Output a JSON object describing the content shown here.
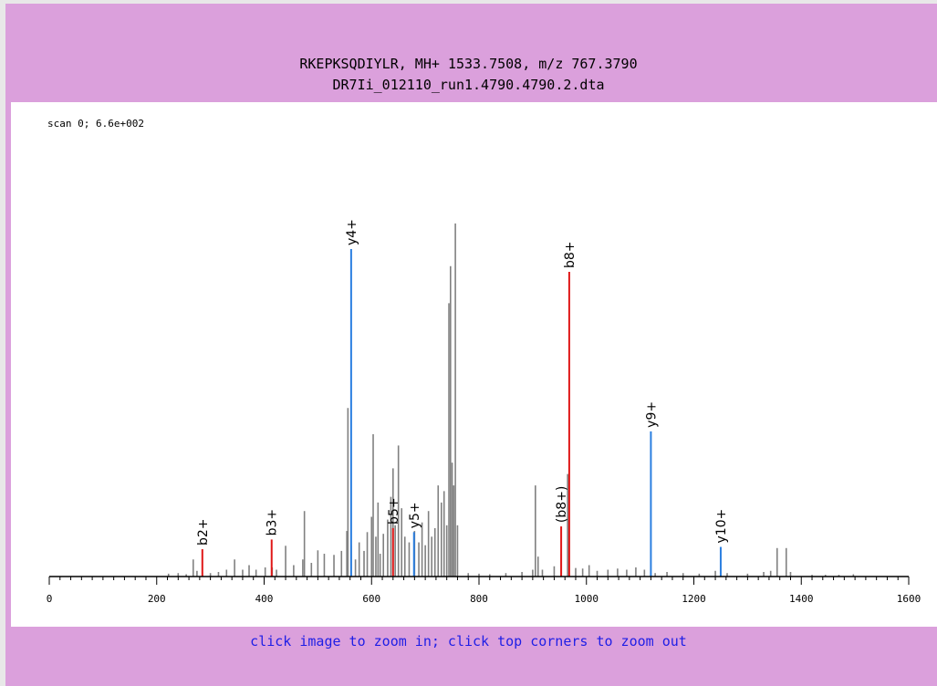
{
  "header": {
    "title_line1": "RKEPKSQDIYLR, MH+ 1533.7508, m/z 767.3790",
    "title_line2": "DR7Ii_012110_run1.4790.4790.2.dta"
  },
  "footer": {
    "hint": "click image to zoom in; click top corners to zoom out"
  },
  "colors": {
    "background": "#dba0dc",
    "plot_background": "#ffffff",
    "unassigned_peaks": "#808080",
    "b_ions": "#e01818",
    "y_ions": "#2a7ee0",
    "footer_text": "#1e1ee6"
  },
  "chart_data": {
    "type": "bar",
    "scan_label": "scan 0; 6.6e+002",
    "xlim": [
      0,
      1600
    ],
    "ylim": [
      0,
      660
    ],
    "x_ticks": [
      0,
      200,
      400,
      600,
      800,
      1000,
      1200,
      1400,
      1600
    ],
    "grid": false,
    "legend": "none",
    "background_peaks": [
      [
        222,
        5
      ],
      [
        240,
        6
      ],
      [
        255,
        4
      ],
      [
        268,
        30
      ],
      [
        275,
        10
      ],
      [
        300,
        6
      ],
      [
        315,
        8
      ],
      [
        330,
        12
      ],
      [
        345,
        30
      ],
      [
        360,
        12
      ],
      [
        372,
        20
      ],
      [
        385,
        12
      ],
      [
        402,
        16
      ],
      [
        415,
        16
      ],
      [
        423,
        12
      ],
      [
        440,
        54
      ],
      [
        455,
        20
      ],
      [
        472,
        30
      ],
      [
        475,
        115
      ],
      [
        488,
        24
      ],
      [
        500,
        46
      ],
      [
        512,
        40
      ],
      [
        530,
        38
      ],
      [
        544,
        45
      ],
      [
        554,
        80
      ],
      [
        556,
        296
      ],
      [
        562,
        55
      ],
      [
        570,
        30
      ],
      [
        577,
        60
      ],
      [
        586,
        45
      ],
      [
        592,
        78
      ],
      [
        600,
        105
      ],
      [
        603,
        250
      ],
      [
        608,
        70
      ],
      [
        612,
        130
      ],
      [
        616,
        40
      ],
      [
        622,
        75
      ],
      [
        630,
        100
      ],
      [
        636,
        140
      ],
      [
        640,
        190
      ],
      [
        644,
        90
      ],
      [
        650,
        230
      ],
      [
        656,
        120
      ],
      [
        662,
        70
      ],
      [
        670,
        60
      ],
      [
        680,
        80
      ],
      [
        688,
        60
      ],
      [
        694,
        95
      ],
      [
        700,
        55
      ],
      [
        706,
        115
      ],
      [
        712,
        70
      ],
      [
        718,
        85
      ],
      [
        724,
        160
      ],
      [
        730,
        130
      ],
      [
        735,
        150
      ],
      [
        740,
        90
      ],
      [
        744,
        480
      ],
      [
        747,
        545
      ],
      [
        750,
        200
      ],
      [
        753,
        160
      ],
      [
        756,
        620
      ],
      [
        760,
        90
      ],
      [
        780,
        6
      ],
      [
        800,
        5
      ],
      [
        820,
        4
      ],
      [
        850,
        6
      ],
      [
        880,
        8
      ],
      [
        900,
        12
      ],
      [
        905,
        160
      ],
      [
        910,
        35
      ],
      [
        918,
        12
      ],
      [
        940,
        18
      ],
      [
        953,
        40
      ],
      [
        965,
        180
      ],
      [
        980,
        15
      ],
      [
        993,
        14
      ],
      [
        1005,
        20
      ],
      [
        1020,
        10
      ],
      [
        1040,
        12
      ],
      [
        1058,
        14
      ],
      [
        1075,
        12
      ],
      [
        1092,
        16
      ],
      [
        1108,
        12
      ],
      [
        1128,
        6
      ],
      [
        1150,
        8
      ],
      [
        1180,
        6
      ],
      [
        1210,
        5
      ],
      [
        1240,
        10
      ],
      [
        1262,
        6
      ],
      [
        1300,
        5
      ],
      [
        1330,
        8
      ],
      [
        1343,
        10
      ],
      [
        1355,
        50
      ],
      [
        1372,
        50
      ],
      [
        1380,
        8
      ],
      [
        1420,
        3
      ],
      [
        1445,
        3
      ],
      [
        1470,
        3
      ],
      [
        1497,
        4
      ]
    ],
    "annotated_peaks": [
      {
        "label": "b2+",
        "ion": "b",
        "x": 285,
        "y": 48
      },
      {
        "label": "b3+",
        "ion": "b",
        "x": 414,
        "y": 65
      },
      {
        "label": "y4+",
        "ion": "y",
        "x": 562,
        "y": 575
      },
      {
        "label": "b5+",
        "ion": "b",
        "x": 640,
        "y": 85
      },
      {
        "label": "y5+",
        "ion": "y",
        "x": 679,
        "y": 78
      },
      {
        "label": "(b8+)",
        "ion": "b",
        "x": 953,
        "y": 88
      },
      {
        "label": "b8+",
        "ion": "b",
        "x": 968,
        "y": 535
      },
      {
        "label": "y9+",
        "ion": "y",
        "x": 1120,
        "y": 255
      },
      {
        "label": "y10+",
        "ion": "y",
        "x": 1250,
        "y": 52
      }
    ]
  }
}
